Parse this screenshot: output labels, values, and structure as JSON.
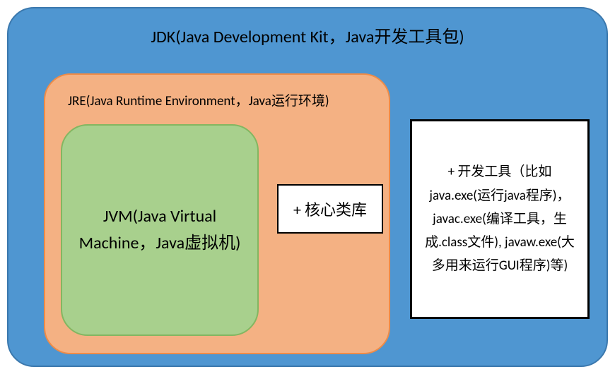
{
  "diagram": {
    "type": "nested-infographic",
    "jdk": {
      "title": "JDK(Java Development Kit，Java开发工具包)",
      "bg_color": "#4f96d1",
      "border_color": "#3b78ad",
      "border_radius": 38,
      "title_fontsize": 24
    },
    "jre": {
      "title": "JRE(Java Runtime Environment，Java运行环境)",
      "bg_color": "#f4b183",
      "border_color": "#ef8b47",
      "border_radius": 38,
      "title_fontsize": 19
    },
    "jvm": {
      "text": "JVM(Java Virtual Machine，Java虚拟机)",
      "bg_color": "#a8d08d",
      "border_color": "#83b661",
      "border_radius": 38,
      "fontsize": 24
    },
    "corelib": {
      "text": "+ 核心类库",
      "bg_color": "#ffffff",
      "border_color": "#000000",
      "fontsize": 22
    },
    "devtools": {
      "text": "+ 开发工具（比如java.exe(运行java程序)，javac.exe(编译工具，生成.class文件), javaw.exe(大多用来运行GUI程序)等)",
      "bg_color": "#ffffff",
      "border_color": "#000000",
      "fontsize": 19
    }
  }
}
